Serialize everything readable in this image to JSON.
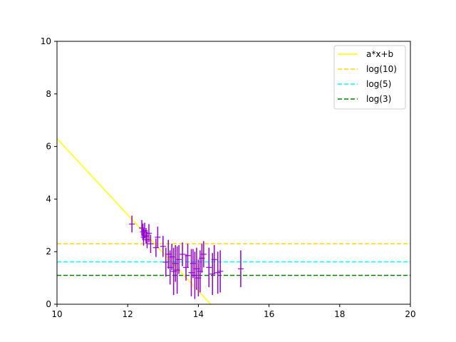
{
  "chart_data": {
    "type": "scatter",
    "xlim": [
      10,
      20
    ],
    "ylim": [
      0,
      10
    ],
    "xticks": [
      10,
      12,
      14,
      16,
      18,
      20
    ],
    "yticks": [
      0,
      2,
      4,
      6,
      8,
      10
    ],
    "grid": false,
    "legend": {
      "placement": "top-right"
    },
    "points_color": "#9400d3",
    "points": [
      {
        "x": 12.12,
        "y": 3.05,
        "err": 0.32
      },
      {
        "x": 12.4,
        "y": 2.9,
        "err": 0.3
      },
      {
        "x": 12.43,
        "y": 2.75,
        "err": 0.32
      },
      {
        "x": 12.45,
        "y": 2.55,
        "err": 0.32
      },
      {
        "x": 12.48,
        "y": 2.8,
        "err": 0.3
      },
      {
        "x": 12.52,
        "y": 2.6,
        "err": 0.3
      },
      {
        "x": 12.55,
        "y": 2.45,
        "err": 0.32
      },
      {
        "x": 12.6,
        "y": 2.7,
        "err": 0.35
      },
      {
        "x": 12.65,
        "y": 2.3,
        "err": 0.35
      },
      {
        "x": 12.8,
        "y": 2.15,
        "err": 0.35
      },
      {
        "x": 12.85,
        "y": 2.55,
        "err": 0.4
      },
      {
        "x": 13.0,
        "y": 2.2,
        "err": 0.4
      },
      {
        "x": 13.08,
        "y": 1.6,
        "err": 0.55
      },
      {
        "x": 13.15,
        "y": 1.9,
        "err": 0.55
      },
      {
        "x": 13.2,
        "y": 1.4,
        "err": 0.65
      },
      {
        "x": 13.25,
        "y": 1.8,
        "err": 0.5
      },
      {
        "x": 13.3,
        "y": 1.25,
        "err": 0.9
      },
      {
        "x": 13.35,
        "y": 1.55,
        "err": 0.7
      },
      {
        "x": 13.4,
        "y": 1.3,
        "err": 0.9
      },
      {
        "x": 13.45,
        "y": 1.7,
        "err": 0.55
      },
      {
        "x": 13.55,
        "y": 1.9,
        "err": 0.45
      },
      {
        "x": 13.65,
        "y": 1.4,
        "err": 0.5
      },
      {
        "x": 13.7,
        "y": 1.85,
        "err": 0.45
      },
      {
        "x": 13.8,
        "y": 1.2,
        "err": 0.9
      },
      {
        "x": 13.85,
        "y": 1.55,
        "err": 0.55
      },
      {
        "x": 13.9,
        "y": 1.1,
        "err": 0.9
      },
      {
        "x": 13.95,
        "y": 1.35,
        "err": 0.8
      },
      {
        "x": 14.0,
        "y": 1.0,
        "err": 0.7
      },
      {
        "x": 14.05,
        "y": 1.25,
        "err": 0.8
      },
      {
        "x": 14.1,
        "y": 1.75,
        "err": 0.55
      },
      {
        "x": 14.15,
        "y": 1.9,
        "err": 0.5
      },
      {
        "x": 14.3,
        "y": 1.4,
        "err": 0.75
      },
      {
        "x": 14.4,
        "y": 1.15,
        "err": 0.8
      },
      {
        "x": 14.45,
        "y": 1.7,
        "err": 0.55
      },
      {
        "x": 14.55,
        "y": 1.2,
        "err": 0.8
      },
      {
        "x": 14.62,
        "y": 1.25,
        "err": 0.8
      },
      {
        "x": 15.2,
        "y": 1.35,
        "err": 0.7
      }
    ],
    "series": [
      {
        "name": "a*x+b",
        "kind": "line",
        "color": "#ffff00",
        "dash": "solid",
        "x": [
          10.0,
          14.35
        ],
        "y": [
          6.3,
          0.0
        ]
      },
      {
        "name": "log(10)",
        "kind": "hline",
        "color": "#ffd700",
        "dash": "dashed",
        "y": 2.3026
      },
      {
        "name": "log(5)",
        "kind": "hline",
        "color": "#00ffff",
        "dash": "dashed",
        "y": 1.6094
      },
      {
        "name": "log(3)",
        "kind": "hline",
        "color": "#008000",
        "dash": "dashed",
        "y": 1.0986
      }
    ]
  }
}
